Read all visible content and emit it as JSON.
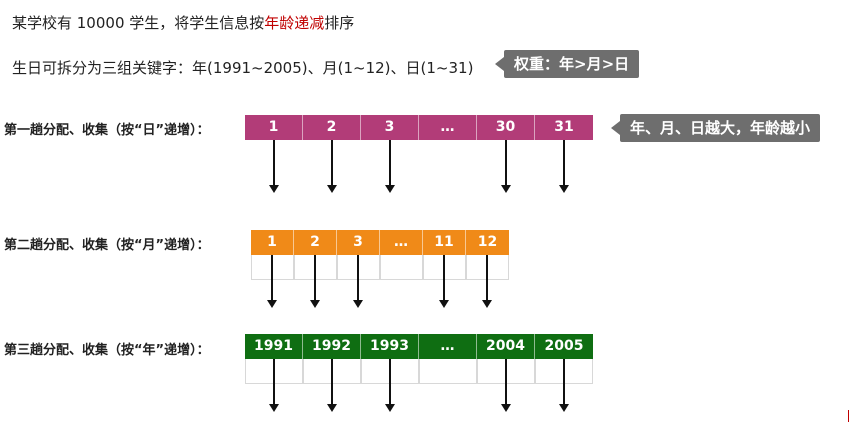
{
  "intro": {
    "prefix": "某学校有 10000 学生，将学生信息按",
    "highlight": "年龄递减",
    "suffix": "排序"
  },
  "keys_line": "生日可拆分为三组关键字：年(1991~2005)、月(1~12)、日(1~31)",
  "weight_callout": "权重：年>月>日",
  "age_callout": "年、月、日越大，年龄越小",
  "colors": {
    "day": "#b23c78",
    "month": "#f08a18",
    "year": "#0f6e12",
    "highlight": "#c00000",
    "callout": "#6e6e6e"
  },
  "passes": [
    {
      "label": "第一趟分配、收集（按“日”递增）：",
      "cells": [
        "1",
        "2",
        "3",
        "…",
        "30",
        "31"
      ]
    },
    {
      "label": "第二趟分配、收集（按“月”递增）：",
      "cells": [
        "1",
        "2",
        "3",
        "…",
        "11",
        "12"
      ]
    },
    {
      "label": "第三趟分配、收集（按“年”递增）：",
      "cells": [
        "1991",
        "1992",
        "1993",
        "…",
        "2004",
        "2005"
      ]
    }
  ]
}
